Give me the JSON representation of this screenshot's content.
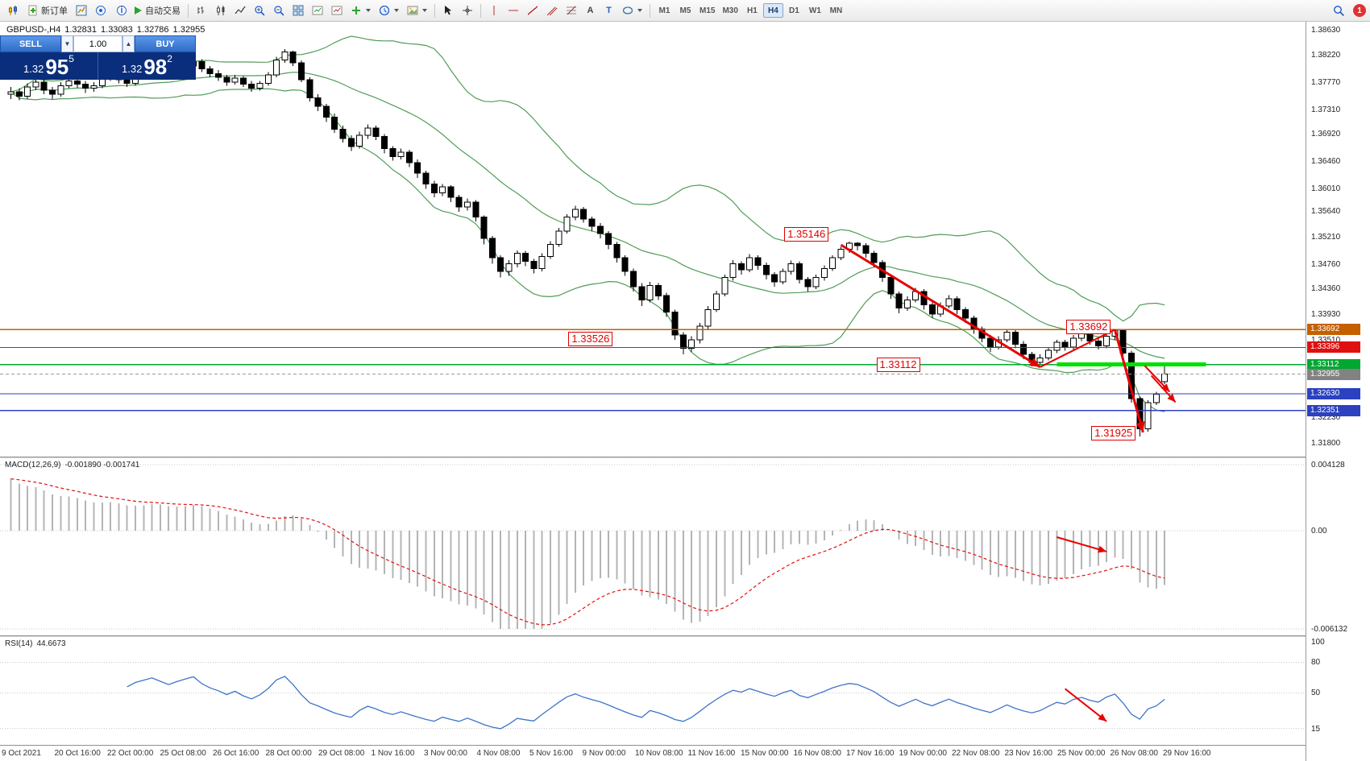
{
  "toolbar": {
    "new_order_label": "新订单",
    "autotrade_label": "自动交易",
    "timeframes": [
      "M1",
      "M5",
      "M15",
      "M30",
      "H1",
      "H4",
      "D1",
      "W1",
      "MN"
    ],
    "active_timeframe": "H4",
    "badge_count": "1",
    "glyphs": {
      "text_tool": "A",
      "label_tool": "T",
      "info": "i"
    }
  },
  "symbol_info": {
    "symbol": "GBPUSD-,H4",
    "open": "1.32831",
    "high": "1.33083",
    "low": "1.32786",
    "close": "1.32955"
  },
  "trade_panel": {
    "sell_label": "SELL",
    "buy_label": "BUY",
    "volume": "1.00",
    "sell_big": "1.32",
    "sell_pips": "95",
    "sell_point": "5",
    "buy_big": "1.32",
    "buy_pips": "98",
    "buy_point": "2"
  },
  "indicators": {
    "macd_label": "MACD(12,26,9)",
    "macd_values": "-0.001890 -0.001741",
    "rsi_label": "RSI(14)",
    "rsi_value": "44.6673"
  },
  "colors": {
    "bollinger": "#4f9d57",
    "candle_up": "#ffffff",
    "candle_down": "#000000",
    "candle_border": "#000000",
    "macd_hist": "#b4b4b4",
    "macd_signal": "#e01010",
    "rsi_line": "#3e74c8",
    "annotation_red": "#e80000",
    "grid_dotted": "#c9c9c9",
    "current_tag_bg": "#828282"
  },
  "chart_data": {
    "type": "candlestick",
    "symbol": "GBPUSD-",
    "timeframe": "H4",
    "price_range": {
      "top": 1.3878,
      "bottom": 1.3159
    },
    "y_ticks": [
      "1.38630",
      "1.38220",
      "1.37770",
      "1.37310",
      "1.36920",
      "1.36460",
      "1.36010",
      "1.35640",
      "1.35210",
      "1.34760",
      "1.34360",
      "1.33930",
      "1.33510",
      "1.32230",
      "1.31800"
    ],
    "time_labels": [
      "9 Oct 2021",
      "20 Oct 16:00",
      "22 Oct 00:00",
      "25 Oct 08:00",
      "26 Oct 16:00",
      "28 Oct 00:00",
      "29 Oct 08:00",
      "1 Nov 16:00",
      "3 Nov 00:00",
      "4 Nov 08:00",
      "5 Nov 16:00",
      "9 Nov 00:00",
      "10 Nov 08:00",
      "11 Nov 16:00",
      "15 Nov 00:00",
      "16 Nov 08:00",
      "17 Nov 16:00",
      "19 Nov 00:00",
      "22 Nov 08:00",
      "23 Nov 16:00",
      "25 Nov 00:00",
      "26 Nov 08:00",
      "29 Nov 16:00"
    ],
    "candles": [
      [
        1.3758,
        1.377,
        1.375,
        1.3762
      ],
      [
        1.3762,
        1.3768,
        1.3748,
        1.3755
      ],
      [
        1.3755,
        1.3776,
        1.375,
        1.377
      ],
      [
        1.377,
        1.3785,
        1.3765,
        1.3778
      ],
      [
        1.3778,
        1.3782,
        1.3758,
        1.3765
      ],
      [
        1.3765,
        1.377,
        1.375,
        1.3758
      ],
      [
        1.3758,
        1.3778,
        1.3754,
        1.3772
      ],
      [
        1.3772,
        1.3788,
        1.3768,
        1.378
      ],
      [
        1.378,
        1.3786,
        1.3769,
        1.3775
      ],
      [
        1.3775,
        1.378,
        1.376,
        1.3768
      ],
      [
        1.3768,
        1.3778,
        1.3762,
        1.3772
      ],
      [
        1.3772,
        1.379,
        1.3768,
        1.3785
      ],
      [
        1.3785,
        1.3796,
        1.378,
        1.379
      ],
      [
        1.379,
        1.3795,
        1.3776,
        1.3782
      ],
      [
        1.3782,
        1.3788,
        1.377,
        1.3776
      ],
      [
        1.3776,
        1.3792,
        1.3772,
        1.3788
      ],
      [
        1.3788,
        1.38,
        1.3784,
        1.3795
      ],
      [
        1.3795,
        1.3808,
        1.379,
        1.3802
      ],
      [
        1.3802,
        1.3806,
        1.379,
        1.3796
      ],
      [
        1.3796,
        1.38,
        1.3784,
        1.379
      ],
      [
        1.379,
        1.3802,
        1.3786,
        1.3798
      ],
      [
        1.3798,
        1.381,
        1.3792,
        1.3805
      ],
      [
        1.3805,
        1.3818,
        1.38,
        1.3812
      ],
      [
        1.3812,
        1.3816,
        1.3795,
        1.38
      ],
      [
        1.38,
        1.3805,
        1.3786,
        1.3792
      ],
      [
        1.3792,
        1.3798,
        1.378,
        1.3786
      ],
      [
        1.3786,
        1.379,
        1.3772,
        1.3778
      ],
      [
        1.3778,
        1.379,
        1.3774,
        1.3785
      ],
      [
        1.3785,
        1.3788,
        1.377,
        1.3775
      ],
      [
        1.3775,
        1.378,
        1.3762,
        1.3768
      ],
      [
        1.3768,
        1.378,
        1.3764,
        1.3776
      ],
      [
        1.3776,
        1.3795,
        1.3772,
        1.379
      ],
      [
        1.379,
        1.382,
        1.3786,
        1.3815
      ],
      [
        1.3815,
        1.3833,
        1.381,
        1.3828
      ],
      [
        1.3828,
        1.383,
        1.3805,
        1.381
      ],
      [
        1.381,
        1.3814,
        1.3778,
        1.3782
      ],
      [
        1.3782,
        1.3786,
        1.3746,
        1.3752
      ],
      [
        1.3752,
        1.3758,
        1.373,
        1.3738
      ],
      [
        1.3738,
        1.3742,
        1.3712,
        1.372
      ],
      [
        1.372,
        1.3726,
        1.3694,
        1.37
      ],
      [
        1.37,
        1.3706,
        1.3678,
        1.3685
      ],
      [
        1.3685,
        1.369,
        1.3664,
        1.3672
      ],
      [
        1.3672,
        1.3696,
        1.3668,
        1.369
      ],
      [
        1.369,
        1.3708,
        1.3684,
        1.3702
      ],
      [
        1.3702,
        1.3706,
        1.3682,
        1.3688
      ],
      [
        1.3688,
        1.3692,
        1.366,
        1.3668
      ],
      [
        1.3668,
        1.3672,
        1.3648,
        1.3655
      ],
      [
        1.3655,
        1.3668,
        1.365,
        1.3662
      ],
      [
        1.3662,
        1.3666,
        1.3638,
        1.3645
      ],
      [
        1.3645,
        1.365,
        1.362,
        1.3628
      ],
      [
        1.3628,
        1.3632,
        1.3602,
        1.361
      ],
      [
        1.361,
        1.3615,
        1.3588,
        1.3595
      ],
      [
        1.3595,
        1.361,
        1.359,
        1.3605
      ],
      [
        1.3605,
        1.3608,
        1.358,
        1.3588
      ],
      [
        1.3588,
        1.3592,
        1.3564,
        1.3572
      ],
      [
        1.3572,
        1.3586,
        1.3566,
        1.358
      ],
      [
        1.358,
        1.3583,
        1.3548,
        1.3555
      ],
      [
        1.3555,
        1.3558,
        1.351,
        1.352
      ],
      [
        1.352,
        1.3524,
        1.3478,
        1.3488
      ],
      [
        1.3488,
        1.3492,
        1.3455,
        1.3465
      ],
      [
        1.3465,
        1.3484,
        1.3458,
        1.3478
      ],
      [
        1.3478,
        1.35,
        1.3472,
        1.3495
      ],
      [
        1.3495,
        1.3499,
        1.3474,
        1.3482
      ],
      [
        1.3482,
        1.3486,
        1.3462,
        1.347
      ],
      [
        1.347,
        1.3495,
        1.3465,
        1.349
      ],
      [
        1.349,
        1.3515,
        1.3486,
        1.351
      ],
      [
        1.351,
        1.3537,
        1.3506,
        1.3532
      ],
      [
        1.3532,
        1.356,
        1.3528,
        1.3555
      ],
      [
        1.3555,
        1.3574,
        1.355,
        1.3568
      ],
      [
        1.3568,
        1.3572,
        1.3546,
        1.3552
      ],
      [
        1.3552,
        1.3556,
        1.3532,
        1.354
      ],
      [
        1.354,
        1.3545,
        1.352,
        1.3528
      ],
      [
        1.3528,
        1.3532,
        1.3502,
        1.351
      ],
      [
        1.351,
        1.3514,
        1.348,
        1.3488
      ],
      [
        1.3488,
        1.3492,
        1.3458,
        1.3465
      ],
      [
        1.3465,
        1.347,
        1.3432,
        1.344
      ],
      [
        1.344,
        1.3446,
        1.3408,
        1.3418
      ],
      [
        1.3418,
        1.3448,
        1.3414,
        1.3442
      ],
      [
        1.3442,
        1.3446,
        1.3418,
        1.3425
      ],
      [
        1.3425,
        1.343,
        1.339,
        1.3398
      ],
      [
        1.3398,
        1.3402,
        1.3352,
        1.336
      ],
      [
        1.336,
        1.3365,
        1.3328,
        1.3338
      ],
      [
        1.3338,
        1.3358,
        1.3332,
        1.3352
      ],
      [
        1.3352,
        1.338,
        1.3346,
        1.3375
      ],
      [
        1.3375,
        1.3408,
        1.337,
        1.3402
      ],
      [
        1.3402,
        1.3433,
        1.3398,
        1.3428
      ],
      [
        1.3428,
        1.346,
        1.3424,
        1.3455
      ],
      [
        1.3455,
        1.3484,
        1.345,
        1.3478
      ],
      [
        1.3478,
        1.3482,
        1.346,
        1.3468
      ],
      [
        1.3468,
        1.3494,
        1.3464,
        1.3488
      ],
      [
        1.3488,
        1.3492,
        1.3468,
        1.3475
      ],
      [
        1.3475,
        1.348,
        1.3452,
        1.346
      ],
      [
        1.346,
        1.3464,
        1.344,
        1.3448
      ],
      [
        1.3448,
        1.347,
        1.3444,
        1.3465
      ],
      [
        1.3465,
        1.3483,
        1.346,
        1.3478
      ],
      [
        1.3478,
        1.3482,
        1.3445,
        1.3452
      ],
      [
        1.3452,
        1.3456,
        1.3432,
        1.344
      ],
      [
        1.344,
        1.346,
        1.3436,
        1.3455
      ],
      [
        1.3455,
        1.3475,
        1.345,
        1.347
      ],
      [
        1.347,
        1.3492,
        1.3466,
        1.3488
      ],
      [
        1.3488,
        1.3506,
        1.3484,
        1.3502
      ],
      [
        1.3502,
        1.35146,
        1.3496,
        1.3512
      ],
      [
        1.3512,
        1.3514,
        1.35,
        1.3508
      ],
      [
        1.3508,
        1.3512,
        1.3488,
        1.3495
      ],
      [
        1.3495,
        1.3499,
        1.3472,
        1.348
      ],
      [
        1.348,
        1.3484,
        1.3448,
        1.3455
      ],
      [
        1.3455,
        1.3459,
        1.342,
        1.3428
      ],
      [
        1.3428,
        1.3432,
        1.3396,
        1.3405
      ],
      [
        1.3405,
        1.3424,
        1.34,
        1.3418
      ],
      [
        1.3418,
        1.3438,
        1.3414,
        1.3432
      ],
      [
        1.3432,
        1.3436,
        1.3402,
        1.341
      ],
      [
        1.341,
        1.3414,
        1.3388,
        1.3395
      ],
      [
        1.3395,
        1.3414,
        1.339,
        1.3408
      ],
      [
        1.3408,
        1.3426,
        1.3404,
        1.342
      ],
      [
        1.342,
        1.3424,
        1.3395,
        1.3402
      ],
      [
        1.3402,
        1.3406,
        1.338,
        1.3388
      ],
      [
        1.3388,
        1.3392,
        1.3362,
        1.337
      ],
      [
        1.337,
        1.3374,
        1.3348,
        1.3355
      ],
      [
        1.3355,
        1.336,
        1.3332,
        1.334
      ],
      [
        1.334,
        1.3358,
        1.3336,
        1.3352
      ],
      [
        1.3352,
        1.337,
        1.3348,
        1.3365
      ],
      [
        1.3365,
        1.3369,
        1.3338,
        1.3345
      ],
      [
        1.3345,
        1.335,
        1.332,
        1.3328
      ],
      [
        1.3328,
        1.3332,
        1.3308,
        1.3315
      ],
      [
        1.3315,
        1.3328,
        1.331,
        1.3322
      ],
      [
        1.3322,
        1.334,
        1.3318,
        1.3335
      ],
      [
        1.3335,
        1.3352,
        1.333,
        1.3348
      ],
      [
        1.3348,
        1.3352,
        1.3334,
        1.334
      ],
      [
        1.334,
        1.336,
        1.3336,
        1.3355
      ],
      [
        1.3355,
        1.3366,
        1.335,
        1.3362
      ],
      [
        1.3362,
        1.3366,
        1.3344,
        1.335
      ],
      [
        1.335,
        1.3355,
        1.3336,
        1.3342
      ],
      [
        1.3342,
        1.3362,
        1.3338,
        1.3358
      ],
      [
        1.3358,
        1.33692,
        1.3352,
        1.3368
      ],
      [
        1.3368,
        1.337,
        1.3322,
        1.333
      ],
      [
        1.333,
        1.3334,
        1.3248,
        1.3255
      ],
      [
        1.3255,
        1.3258,
        1.31925,
        1.3205
      ],
      [
        1.3205,
        1.3252,
        1.32,
        1.3248
      ],
      [
        1.3248,
        1.3266,
        1.3244,
        1.3262
      ],
      [
        1.32831,
        1.33083,
        1.32786,
        1.32955
      ]
    ],
    "bollinger": {
      "period": 20,
      "deviation": 2
    },
    "hlines": [
      {
        "price": 1.33692,
        "color": "#c56000",
        "tag": "1.33692"
      },
      {
        "price": 1.33396,
        "color": "#e01010",
        "tag": "1.33396"
      },
      {
        "price": 1.33112,
        "color": "#00a830",
        "tag": "1.33112"
      },
      {
        "price": 1.3263,
        "color": "#2b41c0",
        "tag": "1.32630"
      },
      {
        "price": 1.32351,
        "color": "#2b41c0",
        "tag": "1.32351"
      }
    ],
    "current_price": {
      "price": 1.32955,
      "tag": "1.32955"
    },
    "green_zone": {
      "price": 1.33112,
      "from_idx": 126,
      "to_idx": 144,
      "color": "#00e000"
    },
    "callouts": [
      {
        "text": "1.35146",
        "idx": 99,
        "price": 1.3527
      },
      {
        "text": "1.33526",
        "idx": 73,
        "price": 1.3353
      },
      {
        "text": "1.33112",
        "idx": 110,
        "price": 1.3311
      },
      {
        "text": "1.33692",
        "idx": 133,
        "price": 1.3374
      },
      {
        "text": "1.31925",
        "idx": 136,
        "price": 1.3198
      }
    ],
    "arrows": [
      {
        "from": {
          "idx": 100,
          "price": 1.3509
        },
        "to": {
          "idx": 124,
          "price": 1.3307
        },
        "head": true,
        "width": 3
      },
      {
        "from": {
          "idx": 124,
          "price": 1.3307
        },
        "to": {
          "idx": 133,
          "price": 1.3369
        },
        "head": false,
        "width": 2
      },
      {
        "from": {
          "idx": 133,
          "price": 1.3369
        },
        "to": {
          "idx": 136.4,
          "price": 1.3199
        },
        "head": true,
        "width": 3
      },
      {
        "from": {
          "idx": 136.6,
          "price": 1.3309
        },
        "to": {
          "idx": 139.6,
          "price": 1.3266
        },
        "head": true,
        "width": 2
      },
      {
        "from": {
          "idx": 137.4,
          "price": 1.3293
        },
        "to": {
          "idx": 140.3,
          "price": 1.3249
        },
        "head": true,
        "width": 2
      }
    ],
    "macd": {
      "axis": [
        "0.004128",
        "0.00",
        "-0.006132"
      ],
      "arrow": {
        "from": {
          "idx": 126,
          "v": -0.0004
        },
        "to": {
          "idx": 132,
          "v": -0.0013
        }
      }
    },
    "rsi": {
      "axis": [
        "100",
        "80",
        "50",
        "15"
      ],
      "arrow": {
        "from": {
          "idx": 127,
          "v": 54
        },
        "to": {
          "idx": 132,
          "v": 22
        }
      }
    }
  }
}
